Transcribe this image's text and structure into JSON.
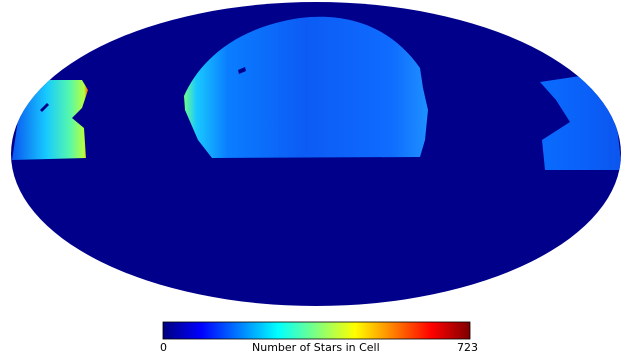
{
  "colorbar": {
    "min_label": "0",
    "max_label": "723",
    "title": "Number of Stars in Cell",
    "colormap": "jet",
    "stops": [
      "#00007f",
      "#0000ff",
      "#007fff",
      "#00ffff",
      "#7fff7f",
      "#ffff00",
      "#ff7f00",
      "#ff0000",
      "#7f0000"
    ]
  },
  "map": {
    "projection": "mollweide",
    "background_color": "#00008b"
  }
}
